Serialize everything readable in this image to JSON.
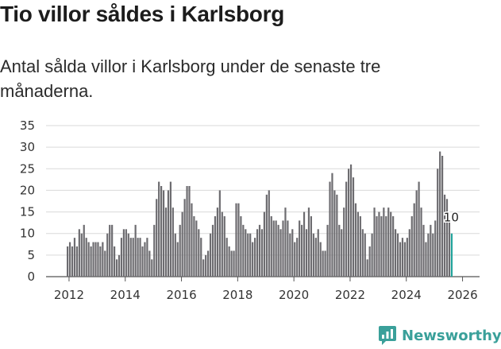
{
  "title": "Tio villor såldes i Karlsborg",
  "subtitle": "Antal sålda villor i Karlsborg under de senaste tre månaderna.",
  "brand": {
    "name": "Newsworthy",
    "color": "#3aa09a"
  },
  "colors": {
    "bar": "#6d6c70",
    "highlight": "#21a39b",
    "grid": "#d9d9d9"
  },
  "chart_data": {
    "type": "bar",
    "title": "Tio villor såldes i Karlsborg",
    "xlabel": "",
    "ylabel": "",
    "ylim": [
      0,
      35
    ],
    "y_ticks": [
      0,
      5,
      10,
      15,
      20,
      25,
      30,
      35
    ],
    "x_ticks": [
      "2012",
      "2014",
      "2016",
      "2018",
      "2020",
      "2022",
      "2024",
      "2026"
    ],
    "start": "2011-12",
    "frequency": "monthly (rolling 3 months)",
    "values": [
      7,
      8,
      7,
      9,
      7,
      11,
      10,
      12,
      9,
      8,
      7,
      8,
      8,
      8,
      7,
      8,
      6,
      10,
      12,
      12,
      7,
      4,
      5,
      9,
      11,
      11,
      10,
      9,
      9,
      12,
      9,
      9,
      7,
      8,
      9,
      6,
      4,
      12,
      18,
      22,
      21,
      20,
      16,
      20,
      22,
      16,
      10,
      8,
      12,
      15,
      18,
      21,
      21,
      17,
      14,
      13,
      11,
      9,
      4,
      5,
      6,
      10,
      12,
      14,
      16,
      20,
      15,
      14,
      9,
      7,
      6,
      6,
      17,
      17,
      14,
      12,
      11,
      10,
      10,
      8,
      9,
      11,
      12,
      11,
      15,
      19,
      20,
      14,
      13,
      13,
      12,
      11,
      13,
      16,
      13,
      10,
      11,
      8,
      9,
      13,
      12,
      15,
      11,
      16,
      14,
      10,
      9,
      11,
      8,
      6,
      6,
      12,
      22,
      24,
      20,
      19,
      12,
      11,
      16,
      22,
      25,
      26,
      23,
      17,
      15,
      14,
      11,
      10,
      4,
      7,
      10,
      16,
      14,
      15,
      14,
      16,
      14,
      16,
      15,
      14,
      11,
      10,
      8,
      9,
      8,
      9,
      11,
      14,
      17,
      20,
      22,
      16,
      12,
      8,
      10,
      12,
      10,
      13,
      25,
      29,
      28,
      19,
      18,
      13,
      10
    ],
    "highlight_last": true,
    "last_value_label": "10"
  }
}
